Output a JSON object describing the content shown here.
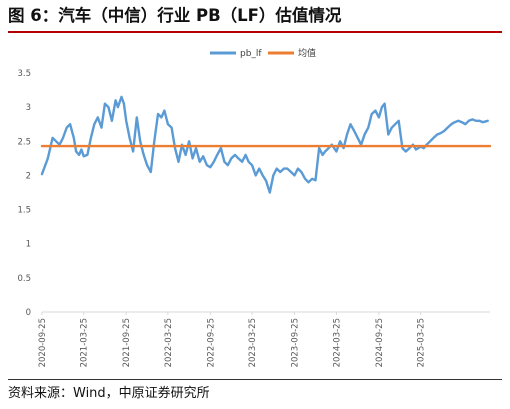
{
  "header": {
    "title": "图 6：汽车（中信）行业 PB（LF）估值情况"
  },
  "footer": {
    "source": "资料来源：Wind，中原证券研究所"
  },
  "colors": {
    "accent_rule": "#b30000",
    "pb_line": "#5b9bd5",
    "mean_line": "#ed7d31",
    "axis": "#d9d9d9"
  },
  "chart_data": {
    "type": "line",
    "x_type": "date",
    "xlim": [
      "2020-09-25",
      "2026-01-20"
    ],
    "ylim": [
      0,
      3.5
    ],
    "yticks": [
      "0",
      "0.5",
      "1",
      "1.5",
      "2",
      "2.5",
      "3",
      "3.5"
    ],
    "yticks_values": [
      0,
      0.5,
      1,
      1.5,
      2,
      2.5,
      3,
      3.5
    ],
    "xticks": [
      "2020-09-25",
      "2021-03-25",
      "2021-09-25",
      "2022-03-25",
      "2022-09-25",
      "2023-03-25",
      "2023-09-25",
      "2024-03-25",
      "2024-09-25",
      "2025-03-25"
    ],
    "grid": false,
    "legend_position": "top-center",
    "series": [
      {
        "name": "pb_lf",
        "x": [
          "2020-09-25",
          "2020-10-20",
          "2020-11-10",
          "2020-11-25",
          "2020-12-10",
          "2020-12-25",
          "2021-01-10",
          "2021-01-25",
          "2021-02-10",
          "2021-02-20",
          "2021-03-05",
          "2021-03-15",
          "2021-03-25",
          "2021-04-10",
          "2021-04-25",
          "2021-05-10",
          "2021-05-25",
          "2021-06-10",
          "2021-06-25",
          "2021-07-10",
          "2021-07-25",
          "2021-08-10",
          "2021-08-20",
          "2021-09-05",
          "2021-09-15",
          "2021-09-25",
          "2021-10-10",
          "2021-10-25",
          "2021-11-10",
          "2021-11-25",
          "2021-12-10",
          "2021-12-25",
          "2022-01-10",
          "2022-01-25",
          "2022-02-10",
          "2022-02-25",
          "2022-03-10",
          "2022-03-25",
          "2022-04-10",
          "2022-04-25",
          "2022-05-10",
          "2022-05-25",
          "2022-06-10",
          "2022-06-25",
          "2022-07-10",
          "2022-07-25",
          "2022-08-10",
          "2022-08-25",
          "2022-09-10",
          "2022-09-25",
          "2022-10-10",
          "2022-10-25",
          "2022-11-10",
          "2022-11-25",
          "2022-12-10",
          "2022-12-25",
          "2023-01-10",
          "2023-01-25",
          "2023-02-10",
          "2023-02-25",
          "2023-03-10",
          "2023-03-25",
          "2023-04-10",
          "2023-04-25",
          "2023-05-10",
          "2023-05-25",
          "2023-06-10",
          "2023-06-25",
          "2023-07-10",
          "2023-07-25",
          "2023-08-10",
          "2023-08-25",
          "2023-09-10",
          "2023-09-25",
          "2023-10-10",
          "2023-10-25",
          "2023-11-10",
          "2023-11-25",
          "2023-12-10",
          "2023-12-25",
          "2024-01-10",
          "2024-01-25",
          "2024-02-05",
          "2024-02-20",
          "2024-03-05",
          "2024-03-25",
          "2024-04-10",
          "2024-04-25",
          "2024-05-10",
          "2024-05-25",
          "2024-06-10",
          "2024-06-25",
          "2024-07-10",
          "2024-07-25",
          "2024-08-10",
          "2024-08-25",
          "2024-09-10",
          "2024-09-25",
          "2024-10-08",
          "2024-10-20",
          "2024-11-05",
          "2024-11-20",
          "2024-12-05",
          "2024-12-20",
          "2025-01-05",
          "2025-01-20",
          "2025-02-05",
          "2025-02-20",
          "2025-03-05",
          "2025-03-25",
          "2025-04-08",
          "2025-04-20",
          "2025-05-05",
          "2025-05-20",
          "2025-06-05",
          "2025-06-20",
          "2025-07-05",
          "2025-07-20",
          "2025-08-05",
          "2025-08-20",
          "2025-09-05",
          "2025-09-20",
          "2025-10-05",
          "2025-10-20",
          "2025-11-05",
          "2025-11-20",
          "2025-12-05",
          "2025-12-20",
          "2026-01-10"
        ],
        "values": [
          2.02,
          2.25,
          2.55,
          2.5,
          2.45,
          2.55,
          2.7,
          2.75,
          2.55,
          2.35,
          2.3,
          2.38,
          2.28,
          2.3,
          2.55,
          2.75,
          2.85,
          2.7,
          3.05,
          3.0,
          2.8,
          3.1,
          3.0,
          3.15,
          3.05,
          2.8,
          2.55,
          2.35,
          2.85,
          2.5,
          2.3,
          2.15,
          2.05,
          2.5,
          2.9,
          2.85,
          2.95,
          2.75,
          2.7,
          2.4,
          2.2,
          2.45,
          2.3,
          2.5,
          2.25,
          2.4,
          2.2,
          2.28,
          2.15,
          2.12,
          2.2,
          2.3,
          2.4,
          2.2,
          2.15,
          2.25,
          2.3,
          2.25,
          2.2,
          2.3,
          2.2,
          2.15,
          2.0,
          2.1,
          2.0,
          1.92,
          1.75,
          2.0,
          2.1,
          2.05,
          2.1,
          2.1,
          2.05,
          2.0,
          2.1,
          2.05,
          1.95,
          1.9,
          1.95,
          1.93,
          2.4,
          2.3,
          2.35,
          2.4,
          2.45,
          2.35,
          2.5,
          2.4,
          2.6,
          2.75,
          2.65,
          2.55,
          2.45,
          2.6,
          2.7,
          2.9,
          2.95,
          2.85,
          3.0,
          3.05,
          2.6,
          2.7,
          2.75,
          2.8,
          2.4,
          2.35,
          2.4,
          2.45,
          2.38,
          2.42,
          2.4,
          2.45,
          2.5,
          2.55,
          2.6,
          2.62,
          2.65,
          2.7,
          2.75,
          2.78,
          2.8,
          2.78,
          2.75,
          2.8,
          2.82,
          2.8,
          2.8,
          2.78,
          2.8
        ]
      },
      {
        "name": "均值",
        "x": [
          "2020-09-25",
          "2026-01-20"
        ],
        "values": [
          2.43,
          2.43
        ]
      }
    ]
  }
}
